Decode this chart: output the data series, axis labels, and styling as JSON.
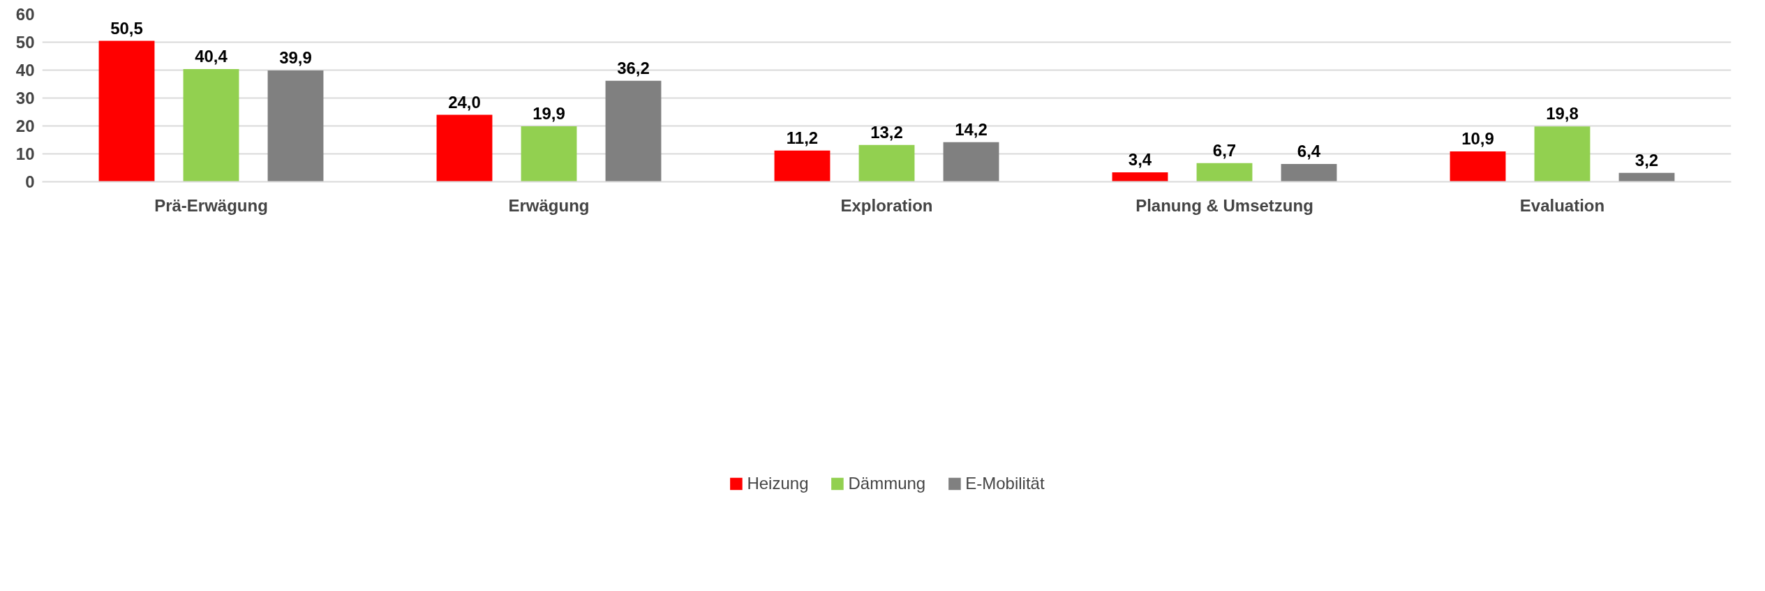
{
  "chart_data": {
    "type": "bar",
    "categories": [
      "Prä-Erwägung",
      "Erwägung",
      "Exploration",
      "Planung & Umsetzung",
      "Evaluation"
    ],
    "series": [
      {
        "name": "Heizung",
        "color": "#ff0000",
        "values": [
          50.5,
          24.0,
          11.2,
          3.4,
          10.9
        ],
        "value_labels": [
          "50,5",
          "24,0",
          "11,2",
          "3,4",
          "10,9"
        ]
      },
      {
        "name": "Dämmung",
        "color": "#92d050",
        "values": [
          40.4,
          19.9,
          13.2,
          6.7,
          19.8
        ],
        "value_labels": [
          "40,4",
          "19,9",
          "13,2",
          "6,7",
          "19,8"
        ]
      },
      {
        "name": "E-Mobilität",
        "color": "#808080",
        "values": [
          39.9,
          36.2,
          14.2,
          6.4,
          3.2
        ],
        "value_labels": [
          "39,9",
          "36,2",
          "14,2",
          "6,4",
          "3,2"
        ]
      }
    ],
    "ylim": [
      0,
      60
    ],
    "yticks": [
      0,
      10,
      20,
      30,
      40,
      50,
      60
    ],
    "grid": "y",
    "legend": "bottom"
  }
}
